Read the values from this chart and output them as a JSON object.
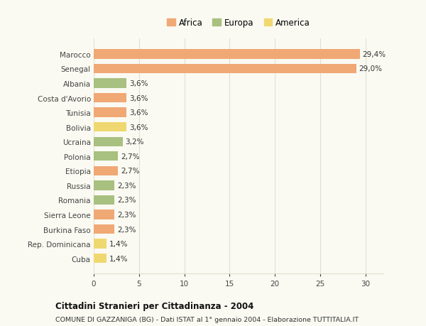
{
  "categories": [
    "Marocco",
    "Senegal",
    "Albania",
    "Costa d'Avorio",
    "Tunisia",
    "Bolivia",
    "Ucraina",
    "Polonia",
    "Etiopia",
    "Russia",
    "Romania",
    "Sierra Leone",
    "Burkina Faso",
    "Rep. Dominicana",
    "Cuba"
  ],
  "values": [
    29.4,
    29.0,
    3.6,
    3.6,
    3.6,
    3.6,
    3.2,
    2.7,
    2.7,
    2.3,
    2.3,
    2.3,
    2.3,
    1.4,
    1.4
  ],
  "labels": [
    "29,4%",
    "29,0%",
    "3,6%",
    "3,6%",
    "3,6%",
    "3,6%",
    "3,2%",
    "2,7%",
    "2,7%",
    "2,3%",
    "2,3%",
    "2,3%",
    "2,3%",
    "1,4%",
    "1,4%"
  ],
  "colors": [
    "#F0A875",
    "#F0A875",
    "#A8C080",
    "#F0A875",
    "#F0A875",
    "#F0D870",
    "#A8C080",
    "#A8C080",
    "#F0A875",
    "#A8C080",
    "#A8C080",
    "#F0A875",
    "#F0A875",
    "#F0D870",
    "#F0D870"
  ],
  "legend_labels": [
    "Africa",
    "Europa",
    "America"
  ],
  "legend_colors": [
    "#F0A875",
    "#A8C080",
    "#F0D870"
  ],
  "title": "Cittadini Stranieri per Cittadinanza - 2004",
  "subtitle": "COMUNE DI GAZZANIGA (BG) - Dati ISTAT al 1° gennaio 2004 - Elaborazione TUTTITALIA.IT",
  "xlim": [
    0,
    32
  ],
  "xticks": [
    0,
    5,
    10,
    15,
    20,
    25,
    30
  ],
  "background_color": "#fafaf2",
  "grid_color": "#e0e0d0"
}
